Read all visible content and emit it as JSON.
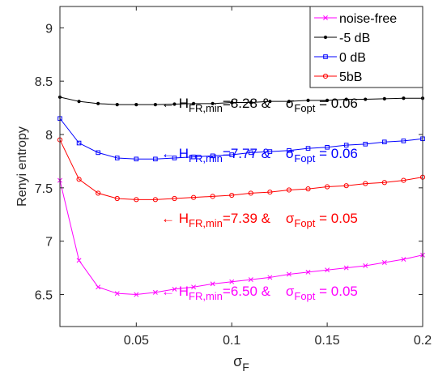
{
  "chart_data": {
    "type": "line",
    "title": "",
    "xlabel": {
      "base": "σ",
      "sub": "F"
    },
    "ylabel": "Renyi entropy",
    "xlim": [
      0.01,
      0.2
    ],
    "ylim": [
      6.2,
      9.2
    ],
    "xticks": [
      0.05,
      0.1,
      0.15,
      0.2
    ],
    "xtick_labels": [
      "0.05",
      "0.1",
      "0.15",
      "0.2"
    ],
    "yticks": [
      6.5,
      7,
      7.5,
      8,
      8.5,
      9
    ],
    "ytick_labels": [
      "6.5",
      "7",
      "7.5",
      "8",
      "8.5",
      "9"
    ],
    "grid": false,
    "legend_position": "top-right",
    "x": [
      0.01,
      0.02,
      0.03,
      0.04,
      0.05,
      0.06,
      0.07,
      0.08,
      0.09,
      0.1,
      0.11,
      0.12,
      0.13,
      0.14,
      0.15,
      0.16,
      0.17,
      0.18,
      0.19,
      0.2
    ],
    "series": [
      {
        "name": "noise-free",
        "color": "#ff00ff",
        "marker": "x",
        "values": [
          7.57,
          6.82,
          6.57,
          6.51,
          6.5,
          6.52,
          6.55,
          6.57,
          6.6,
          6.62,
          6.64,
          6.66,
          6.69,
          6.71,
          6.73,
          6.75,
          6.77,
          6.8,
          6.83,
          6.87
        ]
      },
      {
        "name": "-5 dB",
        "color": "#000000",
        "marker": "dot",
        "values": [
          8.35,
          8.31,
          8.29,
          8.28,
          8.28,
          8.28,
          8.285,
          8.29,
          8.29,
          8.3,
          8.3,
          8.31,
          8.31,
          8.32,
          8.32,
          8.33,
          8.33,
          8.335,
          8.34,
          8.34
        ]
      },
      {
        "name": "0 dB",
        "color": "#0000ff",
        "marker": "square",
        "values": [
          8.15,
          7.92,
          7.83,
          7.78,
          7.77,
          7.77,
          7.78,
          7.79,
          7.8,
          7.81,
          7.83,
          7.84,
          7.85,
          7.87,
          7.88,
          7.9,
          7.91,
          7.93,
          7.94,
          7.96
        ]
      },
      {
        "name": "5bB",
        "color": "#ff0000",
        "marker": "circle",
        "values": [
          7.95,
          7.58,
          7.45,
          7.4,
          7.39,
          7.39,
          7.4,
          7.41,
          7.42,
          7.43,
          7.45,
          7.46,
          7.48,
          7.49,
          7.51,
          7.52,
          7.54,
          7.55,
          7.57,
          7.6
        ]
      }
    ],
    "annotations": [
      {
        "series": "-5 dB",
        "color": "#000000",
        "arrow": "←",
        "h": "H",
        "h_sub": "FR,min",
        "h_value": "=8.28 &",
        "sigma": "σ",
        "sigma_sub": "Fopt",
        "sigma_value": "= 0.06"
      },
      {
        "series": "0 dB",
        "color": "#0000ff",
        "arrow": "←",
        "h": "H",
        "h_sub": "FR,min",
        "h_value": "=7.77 &",
        "sigma": "σ",
        "sigma_sub": "Fopt",
        "sigma_value": "= 0.06"
      },
      {
        "series": "5bB",
        "color": "#ff0000",
        "arrow": "←",
        "h": "H",
        "h_sub": "FR,min",
        "h_value": "=7.39 &",
        "sigma": "σ",
        "sigma_sub": "Fopt",
        "sigma_value": "= 0.05"
      },
      {
        "series": "noise-free",
        "color": "#ff00ff",
        "arrow": "←",
        "h": "H",
        "h_sub": "FR,min",
        "h_value": "=6.50 &",
        "sigma": "σ",
        "sigma_sub": "Fopt",
        "sigma_value": "= 0.05"
      }
    ]
  }
}
